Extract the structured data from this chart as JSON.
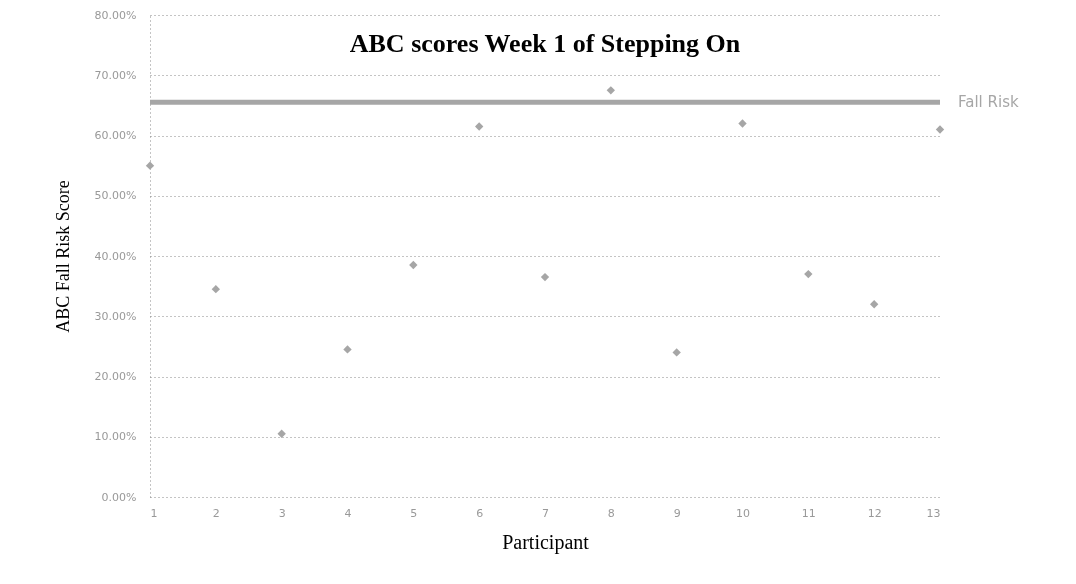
{
  "chart_data": {
    "type": "scatter",
    "title": "ABC scores Week 1 of Stepping On",
    "xlabel": "Participant",
    "ylabel": "ABC Fall Risk Score",
    "x": [
      1,
      2,
      3,
      4,
      5,
      6,
      7,
      8,
      9,
      10,
      11,
      12,
      13
    ],
    "series": [
      {
        "color": "#a6a6a6",
        "values": [
          55,
          34.5,
          10.5,
          24.5,
          38.5,
          61.5,
          36.5,
          67.5,
          24,
          62,
          37,
          32,
          61
        ]
      }
    ],
    "xlim": [
      1,
      13
    ],
    "xticks": [
      1,
      2,
      3,
      4,
      5,
      6,
      7,
      8,
      9,
      10,
      11,
      12,
      13
    ],
    "ylim": [
      0,
      80
    ],
    "yticks": [
      {
        "value": 0,
        "label": "0.00%"
      },
      {
        "value": 10,
        "label": "10.00%"
      },
      {
        "value": 20,
        "label": "20.00%"
      },
      {
        "value": 30,
        "label": "30.00%"
      },
      {
        "value": 40,
        "label": "40.00%"
      },
      {
        "value": 50,
        "label": "50.00%"
      },
      {
        "value": 60,
        "label": "60.00%"
      },
      {
        "value": 70,
        "label": "70.00%"
      },
      {
        "value": 80,
        "label": "80.00%"
      }
    ],
    "ref_lines": [
      {
        "axis": "y",
        "value": 65.5,
        "label": "Fall Risk",
        "color": "#a6a6a6"
      }
    ],
    "grid": "y",
    "marker": "diamond"
  }
}
